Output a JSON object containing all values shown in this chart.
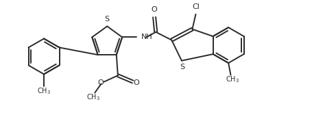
{
  "bg_color": "#ffffff",
  "line_color": "#2a2a2a",
  "lw": 1.4,
  "figsize": [
    4.55,
    1.9
  ],
  "dpi": 100,
  "xlim": [
    0.0,
    10.5
  ],
  "ylim": [
    0.0,
    4.5
  ]
}
